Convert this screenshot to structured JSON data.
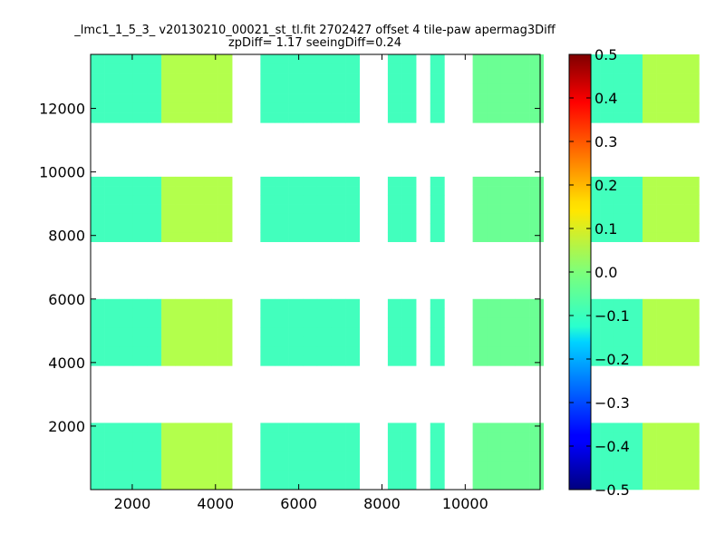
{
  "chart_data": {
    "type": "heatmap",
    "title": "_lmc1_1_5_3_ v20130210_00021_st_tl.fit 2702427 offset 4 tile-paw apermag3Diff",
    "subtitle": "zpDiff= 1.17 seeingDiff=0.24",
    "xlabel": "",
    "ylabel": "",
    "xlim": [
      1000,
      11800
    ],
    "ylim": [
      0,
      13700
    ],
    "x_ticks": [
      "2000",
      "4000",
      "6000",
      "8000",
      "10000"
    ],
    "x_tick_values": [
      2000,
      4000,
      6000,
      8000,
      10000
    ],
    "y_ticks": [
      "2000",
      "4000",
      "6000",
      "8000",
      "10000",
      "12000"
    ],
    "y_tick_values": [
      2000,
      4000,
      6000,
      8000,
      10000,
      12000
    ],
    "colorbar": {
      "colormap": "jet",
      "vmin": -0.5,
      "vmax": 0.5,
      "ticks": [
        "−0.5",
        "−0.4",
        "−0.3",
        "−0.2",
        "−0.1",
        "0.0",
        "0.1",
        "0.2",
        "0.3",
        "0.4",
        "0.5"
      ],
      "tick_values": [
        -0.5,
        -0.4,
        -0.3,
        -0.2,
        -0.1,
        0.0,
        0.1,
        0.2,
        0.3,
        0.4,
        0.5
      ]
    },
    "grid": false,
    "legend": "none",
    "cell_width": 340,
    "x_start": 1000,
    "blocks": [
      {
        "y0": 0,
        "y1": 2100,
        "rows": [
          "GGGGGHHHHH__GGGGGGG__GG_G__FFFFF__GGGGGHHHH",
          "GGGGGHHHHH__GGGGGGG__GG_G__FFFFF__GGGGGHHHH",
          "GGGGGHHHHH__GGGGGGG__GG_G__FFFFF__GGGGGHHHH",
          "GGGGGHHHHH__GGGGGGG__GG_G__FFFFF__GGGGGHHHH",
          "GGGGGHHHHH__GGGGGGG__GG_G__FFFFF__GGGGGHHHH",
          "GGGGGHHHHH__GGGGGGG__GG_G__FFFFF__GGGGGHHHH",
          "GGGGGHHHHH__GGGGGGG__GG_G__FFFFF__GGGGGHHHH"
        ]
      },
      {
        "y0": 3900,
        "y1": 6000,
        "rows": [
          "GGGGGHHHHH__GGGGGGG__GG_G__FFFFF__GGGGGHHHH",
          "GGGGGHHHHH__GGGGGGG__GG_G__FFFFF__GGGGGHHHH",
          "GGGGGHHHHH__GGGGGGG__GG_G__FFFFF__GGGGGHHHH",
          "GGGGGHHHHH__GGGGGGG__GG_G__FFFFF__GGGGGHHHH",
          "GGGGGHHHHH__GGGGGGG__GG_G__FFFFF__GGGGGHHHH",
          "GGGGGHHHHH__GGGGGGG__GG_G__FFFFF__GGGGGHHHH",
          "GGGGGHHHHH__GGGGGGG__GG_G__FFFFF__GGGGGHHHH"
        ]
      },
      {
        "y0": 7800,
        "y1": 9850,
        "rows": [
          "GGGGGHHHHH__GGGGGGG__GG_G__FFFFF__GGGGGHHHH",
          "GGGGGHHHHH__GGGGGGG__GG_G__FFFFF__GGGGGHHHH",
          "GGGGGHHHHH__GGGGGGG__GG_G__FFFFF__GGGGGHHHH",
          "GGGGGHHHHH__GGGGGGG__GG_G__FFFFF__GGGGGHHHH",
          "GGGGGHHHHH__GGGGGGG__GG_G__FFFFF__GGGGGHHHH",
          "GGGGGHHHHH__GGGGGGG__GG_G__FFFFF__GGGGGHHHH",
          "GGGGGHHHHH__GGGGGGG__GG_G__FFFFF__GGGGGHHHH"
        ]
      },
      {
        "y0": 11550,
        "y1": 13700,
        "rows": [
          "GGGGGHHHHH__GGGGGGG__GG_G__FFFFF__GGGGGHHHH",
          "GGGGGHHHHH__GGGGGGG__GG_G__FFFFF__GGGGGHHHH",
          "GGGGGHHHHH__GGGGGGG__GG_G__FFFFF__GGGGGHHHH",
          "GGGGGHHHHH__GGGGGGG__GG_G__FFFFF__GGGGGHHHH",
          "GGGGGHHHHH__GGGGGGG__GG_G__FFFFF__GGGGGHHHH",
          "GGGGGHHHHH__GGGGGGG__GG_G__FFFFF__GGGGGHHHH",
          "GGGGGHHHHH__GGGGGGG__GG_G__FFFFF__GGGGGHHHH"
        ]
      }
    ]
  }
}
